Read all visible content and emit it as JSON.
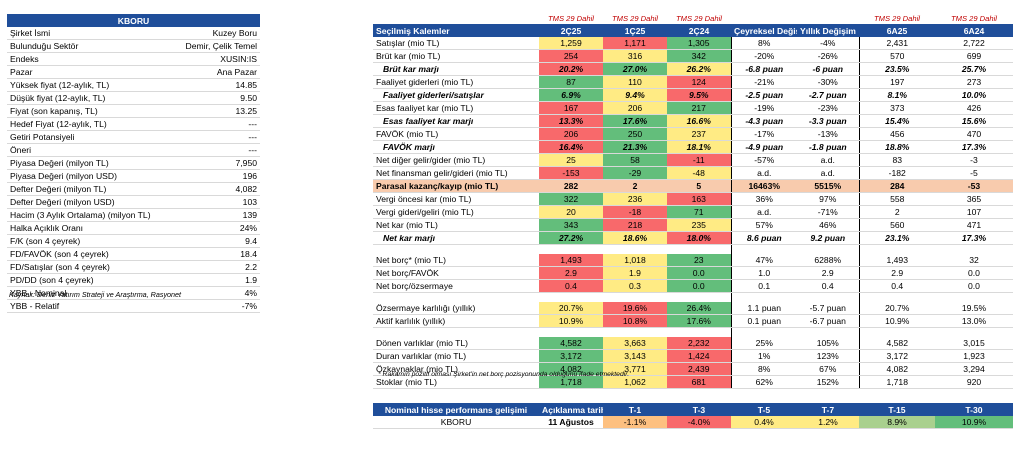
{
  "left": {
    "title": "KBORU",
    "rows": [
      {
        "label": "Şirket İsmi",
        "value": "Kuzey Boru"
      },
      {
        "label": "Bulunduğu Sektör",
        "value": "Demir, Çelik Temel"
      },
      {
        "label": "Endeks",
        "value": "XUSIN:IS"
      },
      {
        "label": "Pazar",
        "value": "Ana Pazar"
      },
      {
        "label": "Yüksek fiyat (12-aylık, TL)",
        "value": "14.85"
      },
      {
        "label": "Düşük fiyat (12-aylık, TL)",
        "value": "9.50"
      },
      {
        "label": "Fiyat (son kapanış, TL)",
        "value": "13.25"
      },
      {
        "label": "Hedef Fiyat (12-aylık, TL)",
        "value": "---"
      },
      {
        "label": "Getiri Potansiyeli",
        "value": "---"
      },
      {
        "label": "Öneri",
        "value": "---"
      },
      {
        "label": "Piyasa Değeri (milyon TL)",
        "value": "7,950"
      },
      {
        "label": "Piyasa Değeri (milyon USD)",
        "value": "196"
      },
      {
        "label": "Defter Değeri (milyon TL)",
        "value": "4,082"
      },
      {
        "label": "Defter Değeri (milyon USD)",
        "value": "103"
      },
      {
        "label": "Hacim (3 Aylık Ortalama) (milyon TL)",
        "value": "139"
      },
      {
        "label": "Halka Açıklık Oranı",
        "value": "24%"
      },
      {
        "label": "F/K (son 4 çeyrek)",
        "value": "9.4"
      },
      {
        "label": "FD/FAVÖK (son 4 çeyrek)",
        "value": "18.4"
      },
      {
        "label": "FD/Satışlar (son 4 çeyrek)",
        "value": "2.2"
      },
      {
        "label": "PD/DD (son 4 çeyrek)",
        "value": "1.9"
      },
      {
        "label": "YBB - Nominal",
        "value": "4%"
      },
      {
        "label": "YBB - Relatif",
        "value": "-7%"
      }
    ],
    "source": "Kaynak: Deniz Yatırım Strateji ve Araştırma, Rasyonet"
  },
  "right": {
    "tms": "TMS 29 Dahil",
    "headers": [
      "Seçilmiş Kalemler",
      "2Ç25",
      "1Ç25",
      "2Ç24",
      "Çeyreksel Değişim",
      "Yıllık Değişim",
      "6A25",
      "6A24"
    ],
    "colors": {
      "green": "#63be7b",
      "yellow": "#ffeb84",
      "red": "#f8696b",
      "orange": "#fdc080",
      "lgreen": "#a9d08e"
    },
    "rows": [
      {
        "style": "",
        "label": "Satışlar (mio TL)",
        "c": [
          "1,259",
          "1,171",
          "1,305"
        ],
        "bg": [
          "#ffeb84",
          "#f8696b",
          "#63be7b"
        ],
        "q": "8%",
        "y": "-4%",
        "h1": "2,431",
        "h2": "2,722"
      },
      {
        "style": "",
        "label": "Brüt kar (mio TL)",
        "c": [
          "254",
          "316",
          "342"
        ],
        "bg": [
          "#f8696b",
          "#ffeb84",
          "#63be7b"
        ],
        "q": "-20%",
        "y": "-26%",
        "h1": "570",
        "h2": "699"
      },
      {
        "style": "bi",
        "label": "Brüt kar marjı",
        "c": [
          "20.2%",
          "27.0%",
          "26.2%"
        ],
        "bg": [
          "#f8696b",
          "#63be7b",
          "#ffeb84"
        ],
        "q": "-6.8 puan",
        "y": "-6 puan",
        "h1": "23.5%",
        "h2": "25.7%"
      },
      {
        "style": "",
        "label": "Faaliyet giderleri (mio TL)",
        "c": [
          "87",
          "110",
          "124"
        ],
        "bg": [
          "#63be7b",
          "#ffeb84",
          "#f8696b"
        ],
        "q": "-21%",
        "y": "-30%",
        "h1": "197",
        "h2": "273"
      },
      {
        "style": "bi",
        "label": "Faaliyet giderleri/satışlar",
        "c": [
          "6.9%",
          "9.4%",
          "9.5%"
        ],
        "bg": [
          "#63be7b",
          "#ffeb84",
          "#f8696b"
        ],
        "q": "-2.5 puan",
        "y": "-2.7 puan",
        "h1": "8.1%",
        "h2": "10.0%"
      },
      {
        "style": "",
        "label": "Esas faaliyet kar (mio TL)",
        "c": [
          "167",
          "206",
          "217"
        ],
        "bg": [
          "#f8696b",
          "#ffeb84",
          "#63be7b"
        ],
        "q": "-19%",
        "y": "-23%",
        "h1": "373",
        "h2": "426"
      },
      {
        "style": "bi",
        "label": "Esas faaliyet kar marjı",
        "c": [
          "13.3%",
          "17.6%",
          "16.6%"
        ],
        "bg": [
          "#f8696b",
          "#63be7b",
          "#ffeb84"
        ],
        "q": "-4.3 puan",
        "y": "-3.3 puan",
        "h1": "15.4%",
        "h2": "15.6%"
      },
      {
        "style": "",
        "label": "FAVÖK (mio TL)",
        "c": [
          "206",
          "250",
          "237"
        ],
        "bg": [
          "#f8696b",
          "#63be7b",
          "#ffeb84"
        ],
        "q": "-17%",
        "y": "-13%",
        "h1": "456",
        "h2": "470"
      },
      {
        "style": "bi",
        "label": "FAVÖK marjı",
        "c": [
          "16.4%",
          "21.3%",
          "18.1%"
        ],
        "bg": [
          "#f8696b",
          "#63be7b",
          "#ffeb84"
        ],
        "q": "-4.9 puan",
        "y": "-1.8 puan",
        "h1": "18.8%",
        "h2": "17.3%"
      },
      {
        "style": "",
        "label": "Net diğer gelir/gider (mio TL)",
        "c": [
          "25",
          "58",
          "-11"
        ],
        "bg": [
          "#ffeb84",
          "#63be7b",
          "#f8696b"
        ],
        "q": "-57%",
        "y": "a.d.",
        "h1": "83",
        "h2": "-3"
      },
      {
        "style": "",
        "label": "Net finansman gelir/gideri (mio TL)",
        "c": [
          "-153",
          "-29",
          "-48"
        ],
        "bg": [
          "#f8696b",
          "#63be7b",
          "#ffeb84"
        ],
        "q": "a.d.",
        "y": "a.d.",
        "h1": "-182",
        "h2": "-5"
      },
      {
        "style": "hl",
        "label": "Parasal kazanç/kayıp (mio TL)",
        "c": [
          "282",
          "2",
          "5"
        ],
        "bg": [
          "",
          "",
          ""
        ],
        "q": "16463%",
        "y": "5515%",
        "h1": "284",
        "h2": "-53"
      },
      {
        "style": "",
        "label": "Vergi öncesi kar (mio TL)",
        "c": [
          "322",
          "236",
          "163"
        ],
        "bg": [
          "#63be7b",
          "#ffeb84",
          "#f8696b"
        ],
        "q": "36%",
        "y": "97%",
        "h1": "558",
        "h2": "365"
      },
      {
        "style": "",
        "label": "Vergi gideri/geliri (mio TL)",
        "c": [
          "20",
          "-18",
          "71"
        ],
        "bg": [
          "#ffeb84",
          "#f8696b",
          "#63be7b"
        ],
        "q": "a.d.",
        "y": "-71%",
        "h1": "2",
        "h2": "107"
      },
      {
        "style": "",
        "label": "Net kar (mio TL)",
        "c": [
          "343",
          "218",
          "235"
        ],
        "bg": [
          "#63be7b",
          "#f8696b",
          "#ffeb84"
        ],
        "q": "57%",
        "y": "46%",
        "h1": "560",
        "h2": "471"
      },
      {
        "style": "bi",
        "label": "Net kar marjı",
        "c": [
          "27.2%",
          "18.6%",
          "18.0%"
        ],
        "bg": [
          "#63be7b",
          "#ffeb84",
          "#f8696b"
        ],
        "q": "8.6 puan",
        "y": "9.2 puan",
        "h1": "23.1%",
        "h2": "17.3%"
      },
      {
        "style": "gap",
        "label": "",
        "c": [
          "",
          "",
          ""
        ],
        "bg": [
          "",
          "",
          ""
        ],
        "q": "",
        "y": "",
        "h1": "",
        "h2": ""
      },
      {
        "style": "",
        "label": "Net borç* (mio TL)",
        "c": [
          "1,493",
          "1,018",
          "23"
        ],
        "bg": [
          "#f8696b",
          "#ffeb84",
          "#63be7b"
        ],
        "q": "47%",
        "y": "6288%",
        "h1": "1,493",
        "h2": "32"
      },
      {
        "style": "",
        "label": "Net borç/FAVÖK",
        "c": [
          "2.9",
          "1.9",
          "0.0"
        ],
        "bg": [
          "#f8696b",
          "#ffeb84",
          "#63be7b"
        ],
        "q": "1.0",
        "y": "2.9",
        "h1": "2.9",
        "h2": "0.0"
      },
      {
        "style": "",
        "label": "Net borç/özsermaye",
        "c": [
          "0.4",
          "0.3",
          "0.0"
        ],
        "bg": [
          "#f8696b",
          "#ffeb84",
          "#63be7b"
        ],
        "q": "0.1",
        "y": "0.4",
        "h1": "0.4",
        "h2": "0.0"
      },
      {
        "style": "gap",
        "label": "",
        "c": [
          "",
          "",
          ""
        ],
        "bg": [
          "",
          "",
          ""
        ],
        "q": "",
        "y": "",
        "h1": "",
        "h2": ""
      },
      {
        "style": "",
        "label": "Özsermaye karlılığı (yıllık)",
        "c": [
          "20.7%",
          "19.6%",
          "26.4%"
        ],
        "bg": [
          "#ffeb84",
          "#f8696b",
          "#63be7b"
        ],
        "q": "1.1 puan",
        "y": "-5.7 puan",
        "h1": "20.7%",
        "h2": "19.5%"
      },
      {
        "style": "",
        "label": "Aktif karlılık (yıllık)",
        "c": [
          "10.9%",
          "10.8%",
          "17.6%"
        ],
        "bg": [
          "#ffeb84",
          "#f8696b",
          "#63be7b"
        ],
        "q": "0.1 puan",
        "y": "-6.7 puan",
        "h1": "10.9%",
        "h2": "13.0%"
      },
      {
        "style": "gap",
        "label": "",
        "c": [
          "",
          "",
          ""
        ],
        "bg": [
          "",
          "",
          ""
        ],
        "q": "",
        "y": "",
        "h1": "",
        "h2": ""
      },
      {
        "style": "",
        "label": "Dönen varlıklar (mio TL)",
        "c": [
          "4,582",
          "3,663",
          "2,232"
        ],
        "bg": [
          "#63be7b",
          "#ffeb84",
          "#f8696b"
        ],
        "q": "25%",
        "y": "105%",
        "h1": "4,582",
        "h2": "3,015"
      },
      {
        "style": "",
        "label": "Duran varlıklar (mio TL)",
        "c": [
          "3,172",
          "3,143",
          "1,424"
        ],
        "bg": [
          "#63be7b",
          "#ffeb84",
          "#f8696b"
        ],
        "q": "1%",
        "y": "123%",
        "h1": "3,172",
        "h2": "1,923"
      },
      {
        "style": "",
        "label": "Özkaynaklar (mio TL)",
        "c": [
          "4,082",
          "3,771",
          "2,439"
        ],
        "bg": [
          "#63be7b",
          "#ffeb84",
          "#f8696b"
        ],
        "q": "8%",
        "y": "67%",
        "h1": "4,082",
        "h2": "3,294"
      },
      {
        "style": "",
        "label": "Stoklar (mio TL)",
        "c": [
          "1,718",
          "1,062",
          "681"
        ],
        "bg": [
          "#63be7b",
          "#ffeb84",
          "#f8696b"
        ],
        "q": "62%",
        "y": "152%",
        "h1": "1,718",
        "h2": "920"
      }
    ],
    "note": "* Rakamın pozitif olması Şirket'in net borç pozisyonunda olduğunu ifade etmektedir."
  },
  "bottom": {
    "headers": [
      "Nominal hisse performans gelişimi",
      "Açıklanma tarihi",
      "T-1",
      "T-3",
      "T-5",
      "T-7",
      "T-15",
      "T-30"
    ],
    "row": {
      "name": "KBORU",
      "date": "11 Ağustos",
      "vals": [
        "-1.1%",
        "-4.0%",
        "0.4%",
        "1.2%",
        "8.9%",
        "10.9%"
      ],
      "bg": [
        "#fdc080",
        "#f8696b",
        "#ffeb84",
        "#ffeb84",
        "#a9d08e",
        "#63be7b"
      ]
    }
  }
}
